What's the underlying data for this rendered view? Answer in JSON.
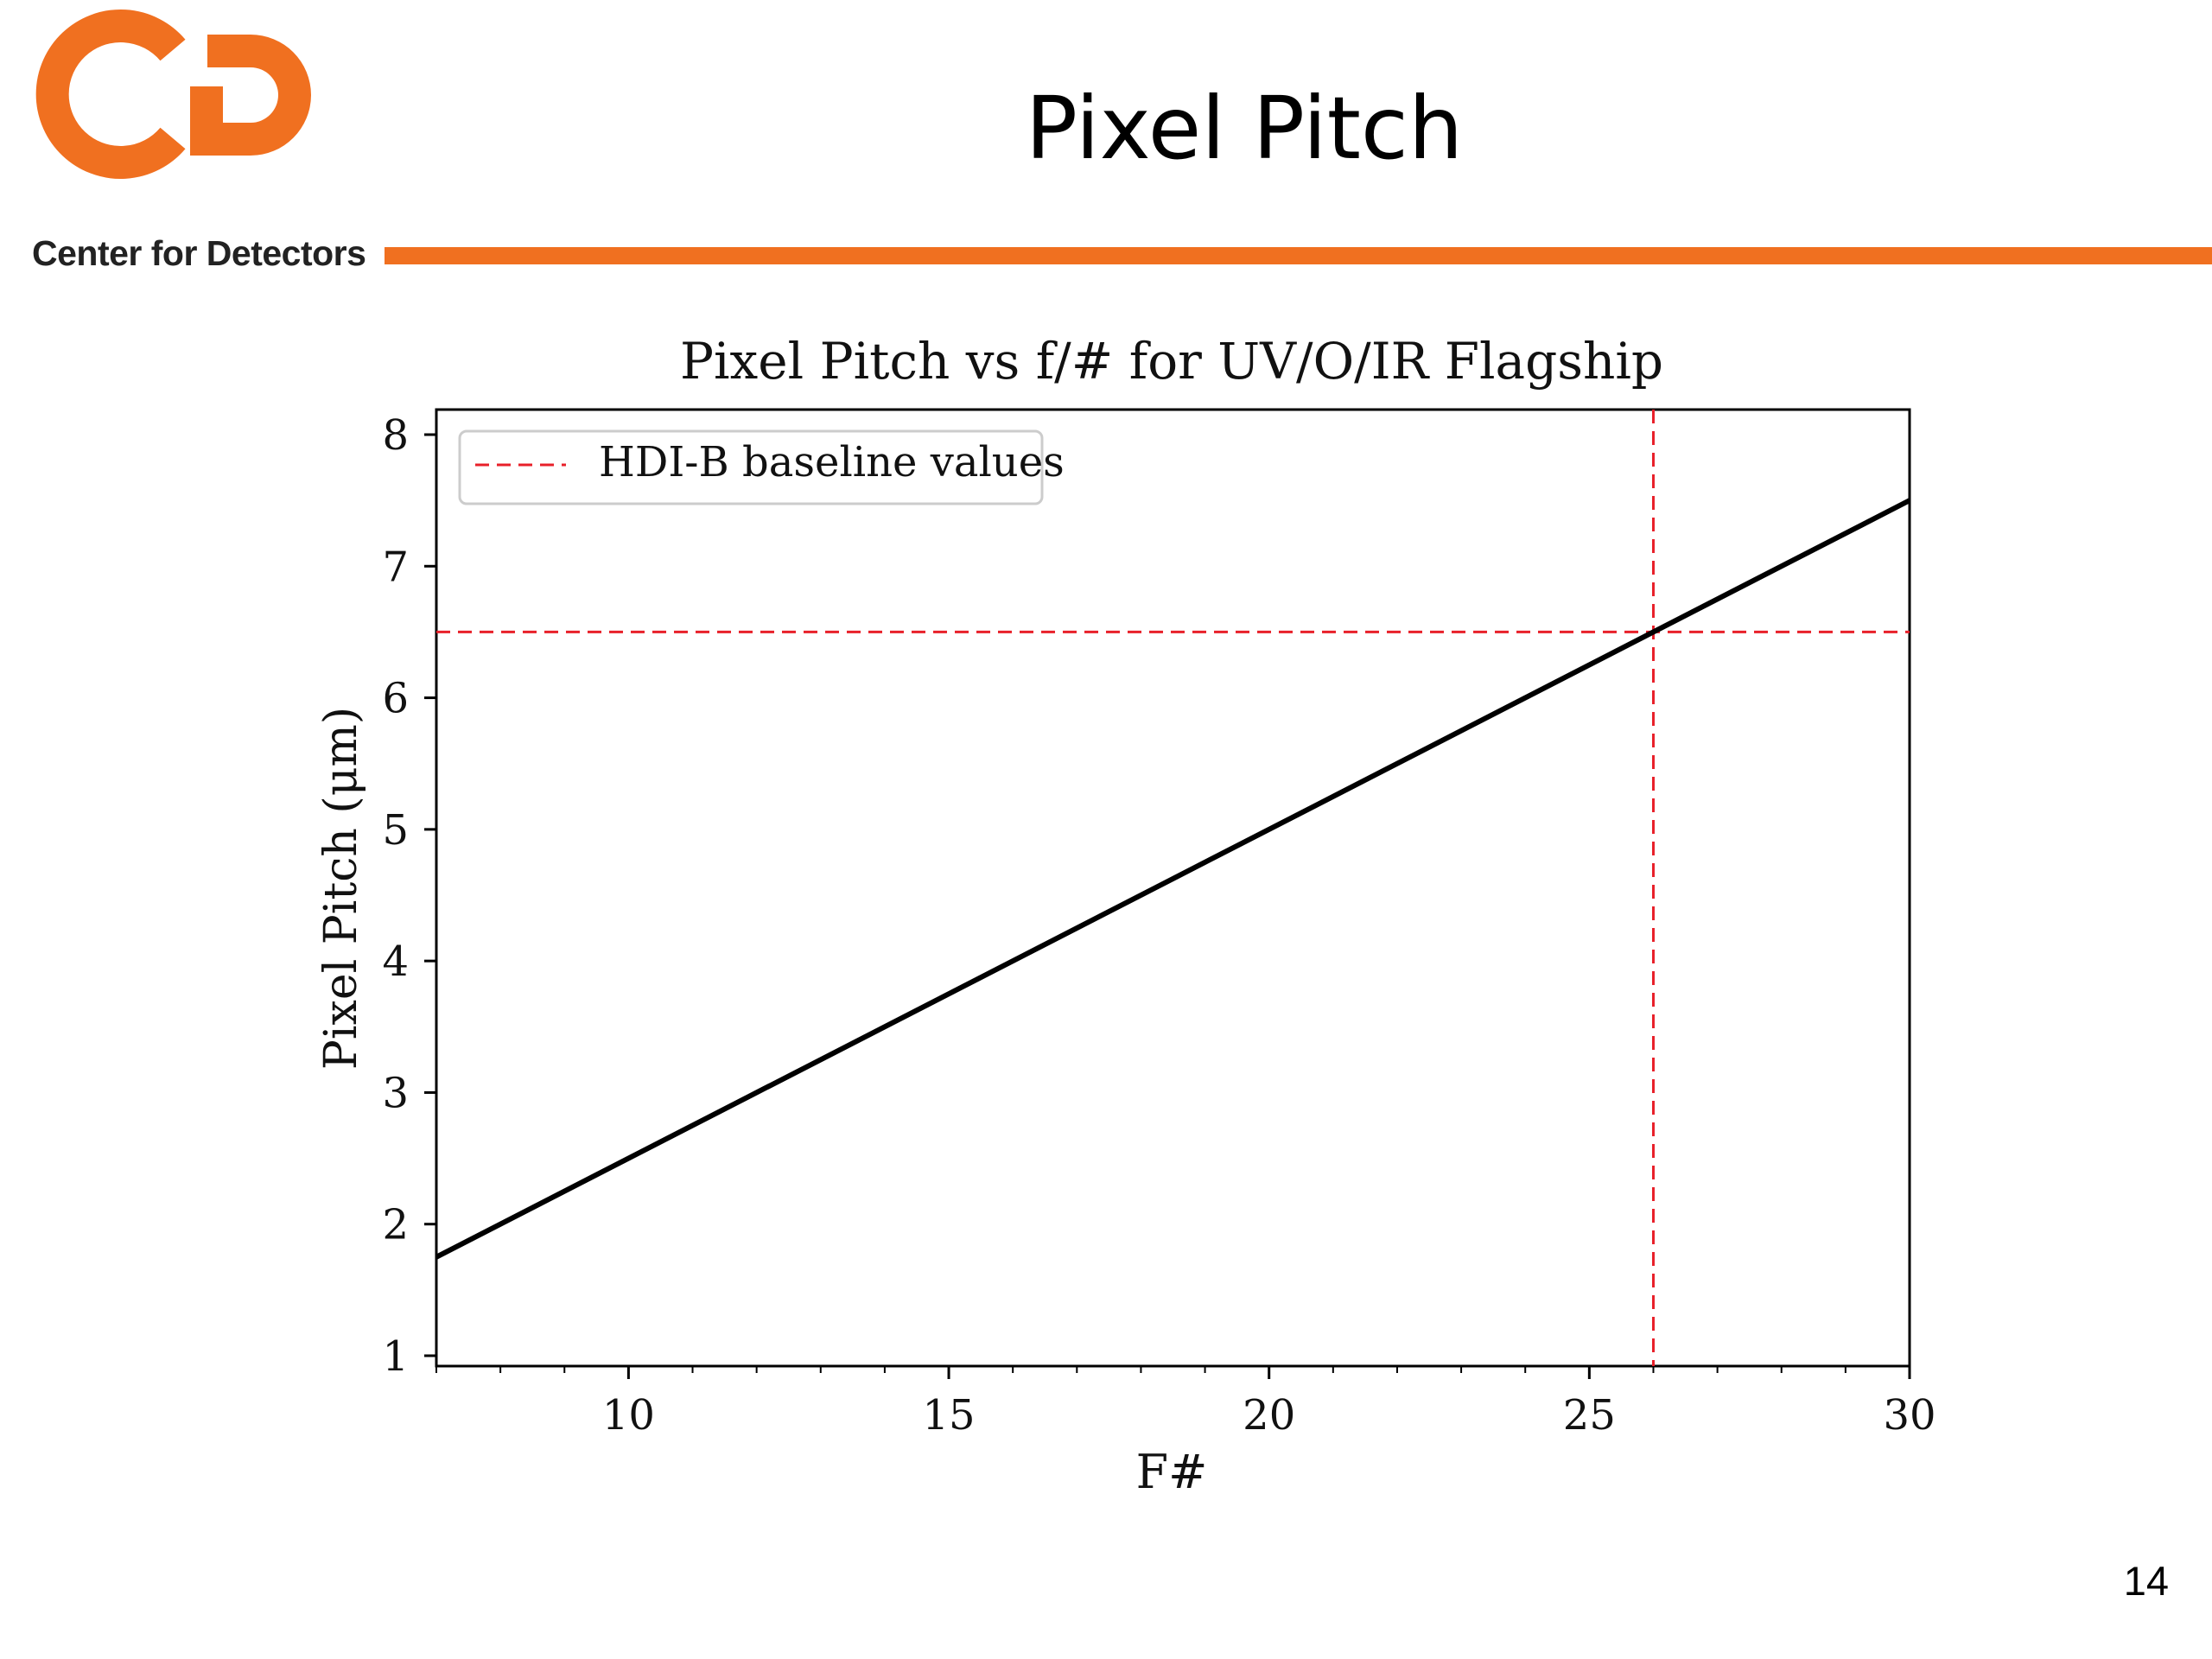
{
  "slide": {
    "title": "Pixel Pitch",
    "page_number": "14"
  },
  "logo": {
    "caption": "Center for Detectors",
    "color": "#F07020"
  },
  "accent_color": "#F07020",
  "chart_data": {
    "type": "line",
    "title": "Pixel Pitch vs f/# for UV/O/IR Flagship",
    "xlabel": "F#",
    "ylabel": "Pixel Pitch (μm)",
    "xlim": [
      7,
      30
    ],
    "ylim": [
      1,
      8
    ],
    "xticks": [
      10,
      15,
      20,
      25,
      30
    ],
    "yticks": [
      1,
      2,
      3,
      4,
      5,
      6,
      7,
      8
    ],
    "x_minor_step": 1,
    "series": [
      {
        "color": "#000000",
        "x": [
          7,
          30
        ],
        "y": [
          1.75,
          7.5
        ]
      }
    ],
    "reference_lines": {
      "name": "HDI-B baseline values",
      "color": "#e8202a",
      "style": "dashed",
      "x": 26,
      "y": 6.5
    },
    "legend": {
      "position": "top-left",
      "entries": [
        "HDI-B baseline values"
      ]
    },
    "grid": false
  }
}
